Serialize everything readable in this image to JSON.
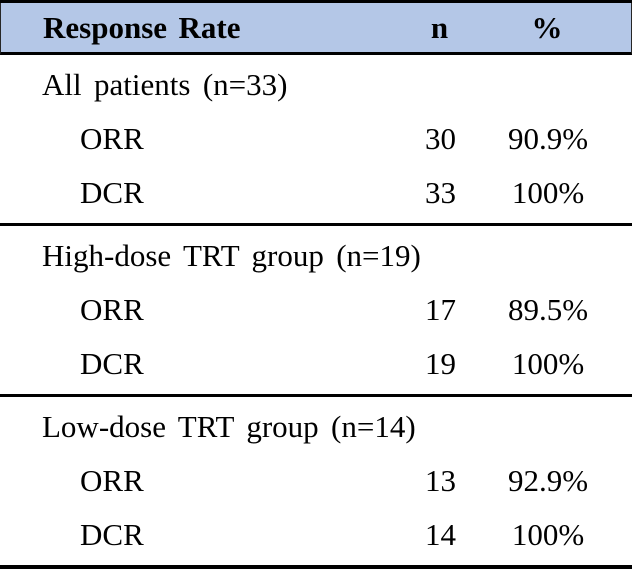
{
  "chart_data": {
    "type": "table",
    "title": "Response Rate",
    "columns": [
      "Response Rate",
      "n",
      "%"
    ],
    "sections": [
      {
        "label": "All patients (n=33)",
        "rows": [
          {
            "metric": "ORR",
            "n": "30",
            "pct": "90.9%"
          },
          {
            "metric": "DCR",
            "n": "33",
            "pct": "100%"
          }
        ]
      },
      {
        "label": "High-dose TRT group (n=19)",
        "rows": [
          {
            "metric": "ORR",
            "n": "17",
            "pct": "89.5%"
          },
          {
            "metric": "DCR",
            "n": "19",
            "pct": "100%"
          }
        ]
      },
      {
        "label": "Low-dose TRT group (n=14)",
        "rows": [
          {
            "metric": "ORR",
            "n": "13",
            "pct": "92.9%"
          },
          {
            "metric": "DCR",
            "n": "14",
            "pct": "100%"
          }
        ]
      }
    ],
    "layout": {
      "grid": "off",
      "header_style": "shaded band with top rule, thick mid rules between groups, bottom rule"
    },
    "colors": {
      "header_bg": "#b4c7e7",
      "line": "#000000",
      "text": "#000000"
    }
  }
}
